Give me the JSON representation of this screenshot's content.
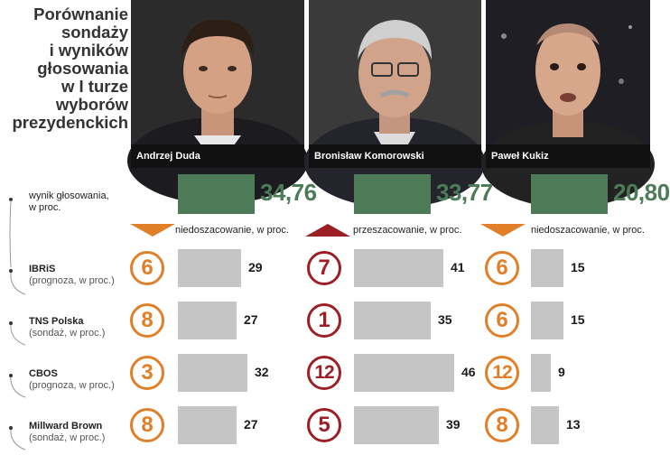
{
  "title_lines": [
    "Porównanie",
    "sondaży",
    "i wyników",
    "głosowania",
    "w I turze",
    "wyborów",
    "prezydenckich"
  ],
  "candidates": [
    {
      "name": "Andrzej Duda",
      "result": "34,76",
      "result_value": 34.76,
      "note": "niedoszacowanie, w proc.",
      "direction": "under"
    },
    {
      "name": "Bronisław Komorowski",
      "result": "33,77",
      "result_value": 33.77,
      "note": "przeszacowanie, w proc.",
      "direction": "over"
    },
    {
      "name": "Paweł Kukiz",
      "result": "20,80",
      "result_value": 20.8,
      "note": "niedoszacowanie, w proc.",
      "direction": "under"
    }
  ],
  "vote_row": {
    "label_main": "wynik głosowania,",
    "label_sub": "w proc."
  },
  "polls": [
    {
      "name": "IBRiS",
      "kind": "(prognoza, w proc.)"
    },
    {
      "name": "TNS Polska",
      "kind": "(sondaż, w proc.)"
    },
    {
      "name": "CBOS",
      "kind": "(prognoza, w proc.)"
    },
    {
      "name": "Millward Brown",
      "kind": "(sondaż, w proc.)"
    }
  ],
  "colors": {
    "vote_bar": "#4d7a57",
    "poll_bar": "#c5c5c5",
    "under": "#e07f28",
    "over": "#9c1f25"
  },
  "chart_data": {
    "type": "bar",
    "categories": [
      "wynik głosowania",
      "IBRiS",
      "TNS Polska",
      "CBOS",
      "Millward Brown"
    ],
    "series": [
      {
        "name": "Andrzej Duda",
        "values": [
          34.76,
          29,
          27,
          32,
          27
        ],
        "diff": [
          6,
          8,
          3,
          8
        ]
      },
      {
        "name": "Bronisław Komorowski",
        "values": [
          33.77,
          41,
          35,
          46,
          39
        ],
        "diff": [
          7,
          1,
          12,
          5
        ]
      },
      {
        "name": "Paweł Kukiz",
        "values": [
          20.8,
          15,
          15,
          9,
          13
        ],
        "diff": [
          6,
          6,
          12,
          8
        ]
      }
    ]
  }
}
